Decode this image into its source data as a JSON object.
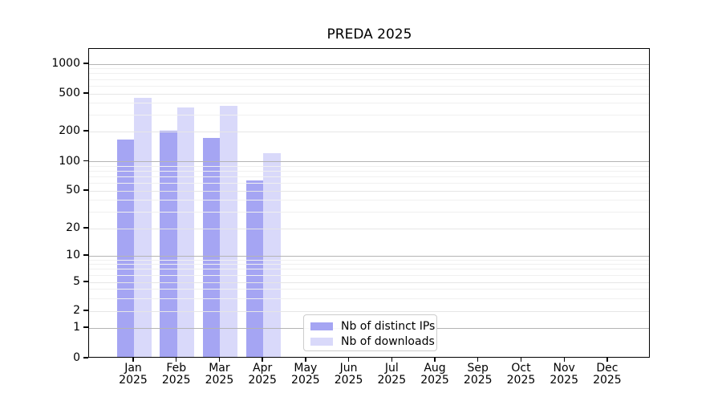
{
  "figure": {
    "title": "PREDA 2025"
  },
  "chart_data": {
    "type": "bar",
    "title": "PREDA 2025",
    "categories": [
      "Jan",
      "Feb",
      "Mar",
      "Apr",
      "May",
      "Jun",
      "Jul",
      "Aug",
      "Sep",
      "Oct",
      "Nov",
      "Dec"
    ],
    "category_subline": "2025",
    "series": [
      {
        "name": "Nb of distinct IPs",
        "color": "#a5a5f3",
        "values": [
          165,
          203,
          171,
          64,
          null,
          null,
          null,
          null,
          null,
          null,
          null,
          null
        ]
      },
      {
        "name": "Nb of downloads",
        "color": "#d9d9fa",
        "values": [
          450,
          356,
          372,
          122,
          null,
          null,
          null,
          null,
          null,
          null,
          null,
          null
        ]
      }
    ],
    "y_ticks": [
      0,
      1,
      2,
      5,
      10,
      20,
      50,
      100,
      200,
      500,
      1000
    ],
    "y_scale": "log above 1, compressed linear below 1",
    "ylim": [
      0,
      1400
    ],
    "xlabel": "",
    "ylabel": "",
    "grid": "horizontal major+minor, drawn over bars",
    "legend_position": "lower center inside plot"
  }
}
